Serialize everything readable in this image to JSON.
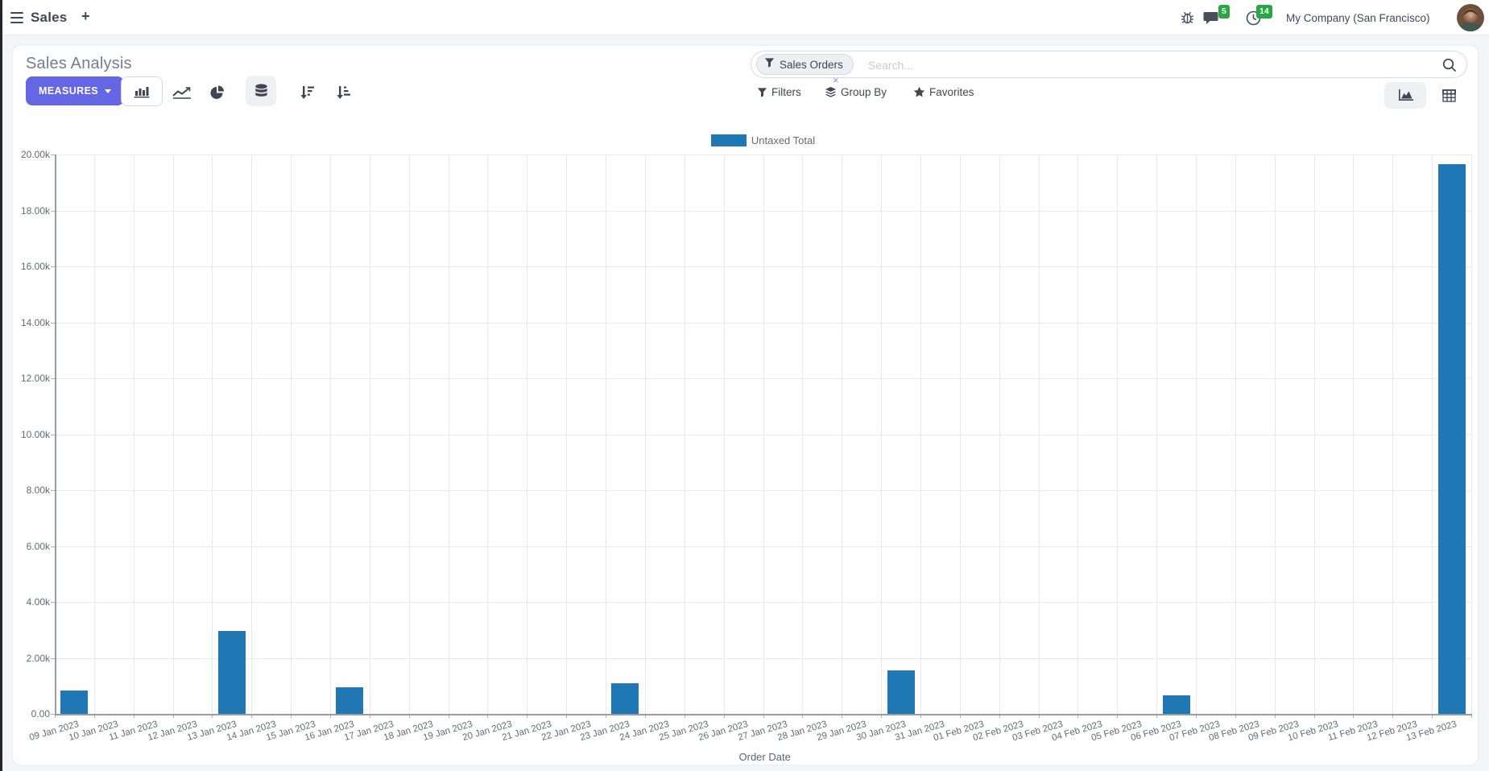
{
  "navbar": {
    "app_menu_label": "Sales",
    "plus_label": "+",
    "chat_badge": "5",
    "activity_badge": "14",
    "company": "My Company (San Francisco)"
  },
  "control_panel": {
    "title": "Sales Analysis",
    "measures_label": "MEASURES",
    "search": {
      "facet_label": "Sales Orders",
      "facet_remove": "×",
      "placeholder": "Search..."
    },
    "menus": {
      "filters": "Filters",
      "group_by": "Group By",
      "favorites": "Favorites"
    }
  },
  "icons": [
    "menu-icon",
    "plus-icon",
    "bug-icon",
    "chat-icon",
    "clock-icon",
    "avatar",
    "bar-chart-icon",
    "line-chart-icon",
    "pie-chart-icon",
    "stacked-icon",
    "sort-desc-icon",
    "sort-asc-icon",
    "filter-facet-icon",
    "search-icon",
    "filters-funnel-icon",
    "group-by-layers-icon",
    "favorites-star-icon",
    "area-view-icon",
    "pivot-view-icon"
  ],
  "colors": {
    "bar": "#1f77b4",
    "accent": "#6466e4",
    "badge_green": "#28a745"
  },
  "chart_data": {
    "type": "bar",
    "title": "",
    "categories": [
      "09 Jan 2023",
      "10 Jan 2023",
      "11 Jan 2023",
      "12 Jan 2023",
      "13 Jan 2023",
      "14 Jan 2023",
      "15 Jan 2023",
      "16 Jan 2023",
      "17 Jan 2023",
      "18 Jan 2023",
      "19 Jan 2023",
      "20 Jan 2023",
      "21 Jan 2023",
      "22 Jan 2023",
      "23 Jan 2023",
      "24 Jan 2023",
      "25 Jan 2023",
      "26 Jan 2023",
      "27 Jan 2023",
      "28 Jan 2023",
      "29 Jan 2023",
      "30 Jan 2023",
      "31 Jan 2023",
      "01 Feb 2023",
      "02 Feb 2023",
      "03 Feb 2023",
      "04 Feb 2023",
      "05 Feb 2023",
      "06 Feb 2023",
      "07 Feb 2023",
      "08 Feb 2023",
      "09 Feb 2023",
      "10 Feb 2023",
      "11 Feb 2023",
      "12 Feb 2023",
      "13 Feb 2023"
    ],
    "series": [
      {
        "name": "Untaxed Total",
        "color": "#1f77b4",
        "values": [
          830,
          0,
          0,
          0,
          2950,
          0,
          0,
          950,
          0,
          0,
          0,
          0,
          0,
          0,
          1090,
          0,
          0,
          0,
          0,
          0,
          0,
          1550,
          0,
          0,
          0,
          0,
          0,
          0,
          660,
          0,
          0,
          0,
          0,
          0,
          0,
          19650
        ]
      }
    ],
    "xlabel": "Order Date",
    "ylabel": "",
    "ylim": [
      0,
      20000
    ],
    "y_tick_labels": [
      "0.00",
      "2.00k",
      "4.00k",
      "6.00k",
      "8.00k",
      "10.00k",
      "12.00k",
      "14.00k",
      "16.00k",
      "18.00k",
      "20.00k"
    ],
    "grid": true,
    "legend_position": "top"
  }
}
